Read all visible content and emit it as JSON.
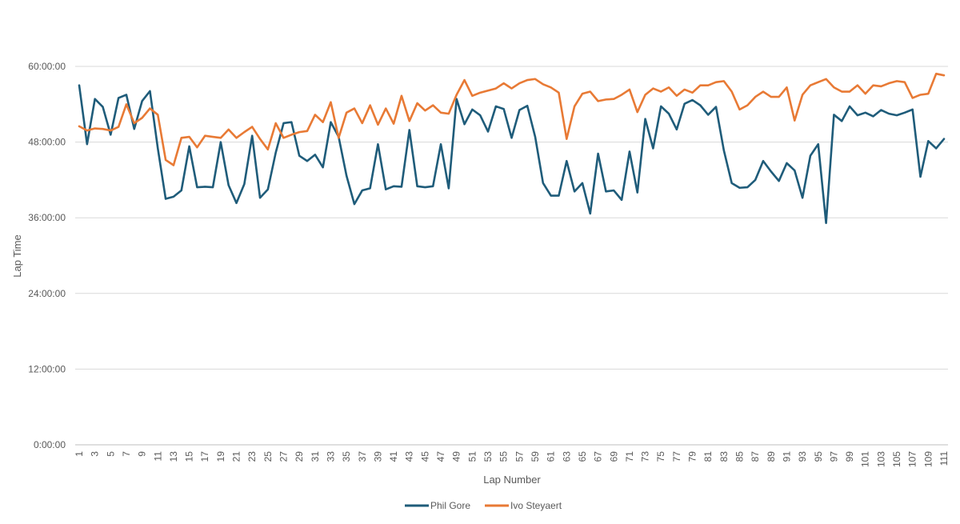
{
  "chart_data": {
    "type": "line",
    "title": "",
    "xlabel": "Lap Number",
    "ylabel": "Lap Time",
    "x_range": [
      1,
      111
    ],
    "x_tick_labels_every": 2,
    "ylim": [
      0,
      3600
    ],
    "y_ticks": [
      {
        "value": 0,
        "label": "0:00:00"
      },
      {
        "value": 720,
        "label": "12:00:00"
      },
      {
        "value": 1440,
        "label": "24:00:00"
      },
      {
        "value": 2160,
        "label": "36:00:00"
      },
      {
        "value": 2880,
        "label": "48:00:00"
      },
      {
        "value": 3600,
        "label": "60:00:00"
      }
    ],
    "grid": "horizontal",
    "legend_position": "bottom",
    "series": [
      {
        "name": "Phil Gore",
        "color": "#1f5c7a",
        "values": [
          3420,
          2860,
          3290,
          3215,
          2950,
          3300,
          3330,
          3005,
          3270,
          3365,
          2820,
          2340,
          2360,
          2420,
          2840,
          2450,
          2455,
          2450,
          2880,
          2470,
          2300,
          2480,
          2940,
          2350,
          2430,
          2780,
          3060,
          3070,
          2750,
          2700,
          2760,
          2640,
          3070,
          2930,
          2560,
          2290,
          2420,
          2440,
          2860,
          2430,
          2460,
          2455,
          2995,
          2460,
          2450,
          2460,
          2860,
          2440,
          3290,
          3050,
          3190,
          3135,
          2980,
          3220,
          3195,
          2920,
          3185,
          3225,
          2930,
          2490,
          2370,
          2370,
          2700,
          2410,
          2490,
          2200,
          2770,
          2410,
          2420,
          2330,
          2790,
          2400,
          3100,
          2820,
          3220,
          3150,
          3000,
          3245,
          3280,
          3230,
          3140,
          3215,
          2800,
          2490,
          2445,
          2450,
          2520,
          2700,
          2600,
          2510,
          2680,
          2610,
          2350,
          2750,
          2860,
          2110,
          3140,
          3080,
          3220,
          3135,
          3160,
          3125,
          3185,
          3150,
          3135,
          3160,
          3190,
          2550,
          2890,
          2820,
          2910
        ]
      },
      {
        "name": "Ivo Steyaert",
        "color": "#e87a35",
        "values": [
          3030,
          2990,
          3010,
          3005,
          2990,
          3025,
          3240,
          3060,
          3110,
          3200,
          3140,
          2710,
          2660,
          2920,
          2930,
          2830,
          2940,
          2930,
          2920,
          3000,
          2920,
          2975,
          3025,
          2910,
          2810,
          3060,
          2920,
          2950,
          2975,
          2985,
          3140,
          3070,
          3260,
          2920,
          3160,
          3200,
          3060,
          3230,
          3045,
          3200,
          3055,
          3320,
          3080,
          3250,
          3180,
          3230,
          3160,
          3150,
          3330,
          3470,
          3320,
          3350,
          3370,
          3390,
          3440,
          3390,
          3440,
          3470,
          3480,
          3430,
          3400,
          3350,
          2910,
          3220,
          3340,
          3360,
          3270,
          3285,
          3290,
          3330,
          3380,
          3165,
          3330,
          3390,
          3360,
          3400,
          3320,
          3380,
          3350,
          3420,
          3420,
          3450,
          3460,
          3360,
          3190,
          3230,
          3310,
          3360,
          3310,
          3310,
          3400,
          3085,
          3330,
          3420,
          3450,
          3480,
          3400,
          3360,
          3360,
          3420,
          3340,
          3420,
          3410,
          3440,
          3460,
          3450,
          3300,
          3330,
          3340,
          3530,
          3515
        ]
      }
    ]
  }
}
